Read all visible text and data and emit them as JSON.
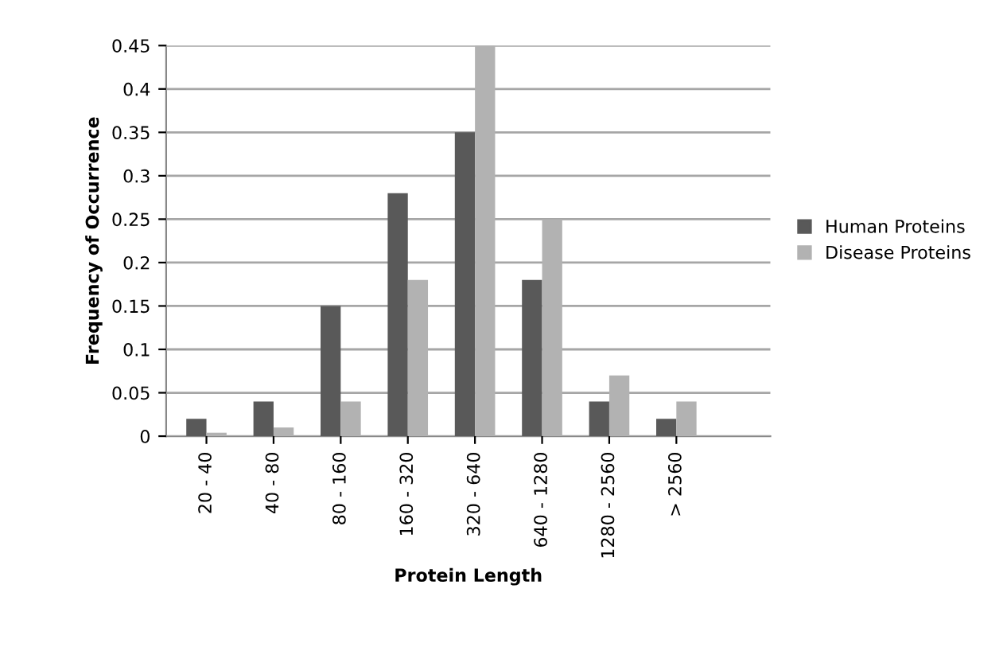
{
  "chart_data": {
    "type": "bar",
    "xlabel": "Protein Length",
    "ylabel": "Frequency of Occurrence",
    "categories": [
      "20 - 40",
      "40 - 80",
      "80 - 160",
      "160 - 320",
      "320 - 640",
      "640 - 1280",
      "1280 - 2560",
      "> 2560"
    ],
    "series": [
      {
        "name": "Human Proteins",
        "color": "#595959",
        "values": [
          0.02,
          0.04,
          0.15,
          0.28,
          0.35,
          0.18,
          0.04,
          0.02
        ]
      },
      {
        "name": "Disease Proteins",
        "color": "#b2b2b2",
        "values": [
          0.004,
          0.01,
          0.04,
          0.18,
          0.45,
          0.25,
          0.07,
          0.04
        ]
      }
    ],
    "ylim": [
      0,
      0.45
    ],
    "yticks": [
      0,
      0.05,
      0.1,
      0.15,
      0.2,
      0.25,
      0.3,
      0.35,
      0.4,
      0.45
    ],
    "grid": "y",
    "legend": "right"
  }
}
